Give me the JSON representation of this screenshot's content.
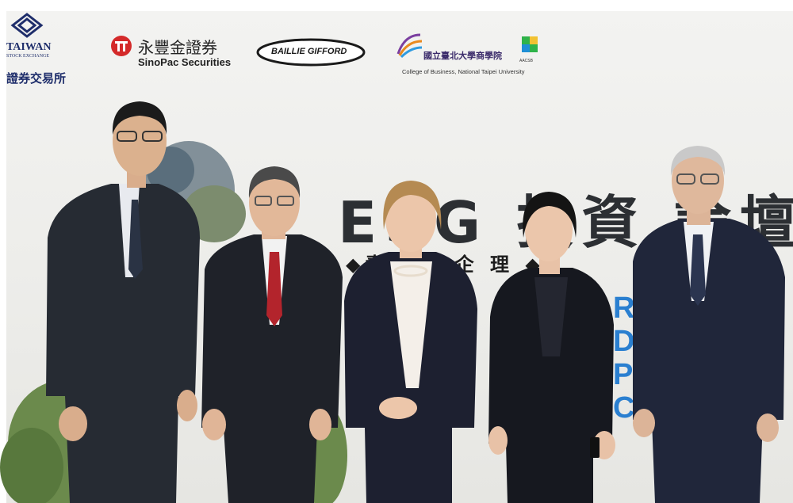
{
  "photo": {
    "subject": "Five people standing in front of an ESG investment forum backdrop",
    "colors": {
      "backdrop": "#ecece9",
      "banner_text": "#2c2f33",
      "banner_accent": "#2a7fd0",
      "suit_dark": "#1e2129",
      "tie_red": "#b3242c",
      "foliage": "#5d7a3e"
    }
  },
  "sponsors": {
    "twse": {
      "name": "TAIWAN",
      "sub": "STOCK EXCHANGE",
      "cn": "證券交易所"
    },
    "sinopac": {
      "cn": "永豐金證券",
      "en": "SinoPac Securities"
    },
    "baillie": {
      "name": "BAILLIE GIFFORD"
    },
    "ntpu": {
      "cn": "國立臺北大學商學院",
      "en": "College of Business, National Taipei University",
      "badge": "AACSB"
    }
  },
  "banner": {
    "title": "ESG 投資 論壇",
    "subtitle": "◆責 資 ◆企 理 ◆",
    "side": [
      "RE",
      "DO",
      "PO",
      "CO"
    ]
  }
}
